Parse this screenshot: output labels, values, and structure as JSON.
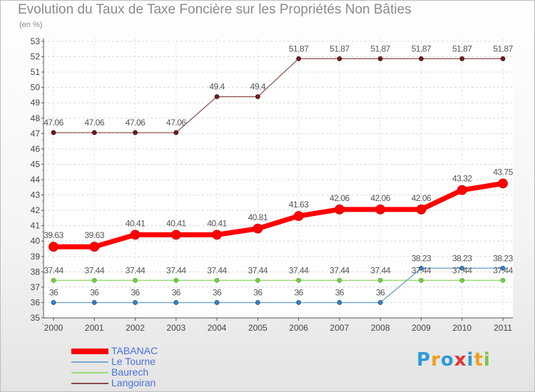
{
  "title": "Evolution du Taux de Taxe Foncière sur les Propriétés Non Bâties",
  "subtitle": "(en %)",
  "logo": {
    "letters": [
      "P",
      "r",
      "o",
      "x",
      "i",
      "t",
      "i"
    ],
    "colors": [
      "#2e9bd6",
      "#f0a01e",
      "#2e9bd6",
      "#e8322e",
      "#2e9bd6",
      "#f0a01e",
      "#7cc242"
    ]
  },
  "chart_data": {
    "type": "line",
    "title": "Evolution du Taux de Taxe Foncière sur les Propriétés Non Bâties",
    "ylabel": "(en %)",
    "xlabel": "",
    "x": [
      "2000",
      "2001",
      "2002",
      "2003",
      "2004",
      "2005",
      "2006",
      "2007",
      "2008",
      "2009",
      "2010",
      "2011"
    ],
    "ylim": [
      35,
      53
    ],
    "yticks": [
      "35",
      "36",
      "37",
      "38",
      "39",
      "40",
      "41",
      "42",
      "43",
      "44",
      "45",
      "46",
      "47",
      "48",
      "49",
      "50",
      "51",
      "52",
      "53"
    ],
    "grid": true,
    "legend": "bottom-left",
    "series": [
      {
        "name": "TABANAC",
        "color": "#ff0000",
        "values": [
          39.63,
          39.63,
          40.41,
          40.41,
          40.41,
          40.81,
          41.63,
          42.06,
          42.06,
          42.06,
          43.32,
          43.75
        ],
        "labels": [
          "39.63",
          "39.63",
          "40.41",
          "40.41",
          "40.41",
          "40.81",
          "41.63",
          "42.06",
          "42.06",
          "42.06",
          "43.32",
          "43.75"
        ]
      },
      {
        "name": "Le Tourne",
        "color": "#7aa9cf",
        "values": [
          36,
          36,
          36,
          36,
          36,
          36,
          36,
          36,
          36,
          38.23,
          38.23,
          38.23
        ],
        "labels": [
          "36",
          "36",
          "36",
          "36",
          "36",
          "36",
          "36",
          "36",
          "36",
          "38.23",
          "38.23",
          "38.23"
        ]
      },
      {
        "name": "Baurech",
        "color": "#99dd77",
        "values": [
          37.44,
          37.44,
          37.44,
          37.44,
          37.44,
          37.44,
          37.44,
          37.44,
          37.44,
          37.44,
          37.44,
          37.44
        ],
        "labels": [
          "37.44",
          "37.44",
          "37.44",
          "37.44",
          "37.44",
          "37.44",
          "37.44",
          "37.44",
          "37.44",
          "37.44",
          "37.44",
          "37.44"
        ]
      },
      {
        "name": "Langoiran",
        "color": "#8b4a4a",
        "values": [
          47.06,
          47.06,
          47.06,
          47.06,
          49.4,
          49.4,
          51.87,
          51.87,
          51.87,
          51.87,
          51.87,
          51.87
        ],
        "labels": [
          "47.06",
          "47.06",
          "47.06",
          "47.06",
          "49.4",
          "49.4",
          "51.87",
          "51.87",
          "51.87",
          "51.87",
          "51.87",
          "51.87"
        ]
      }
    ]
  }
}
